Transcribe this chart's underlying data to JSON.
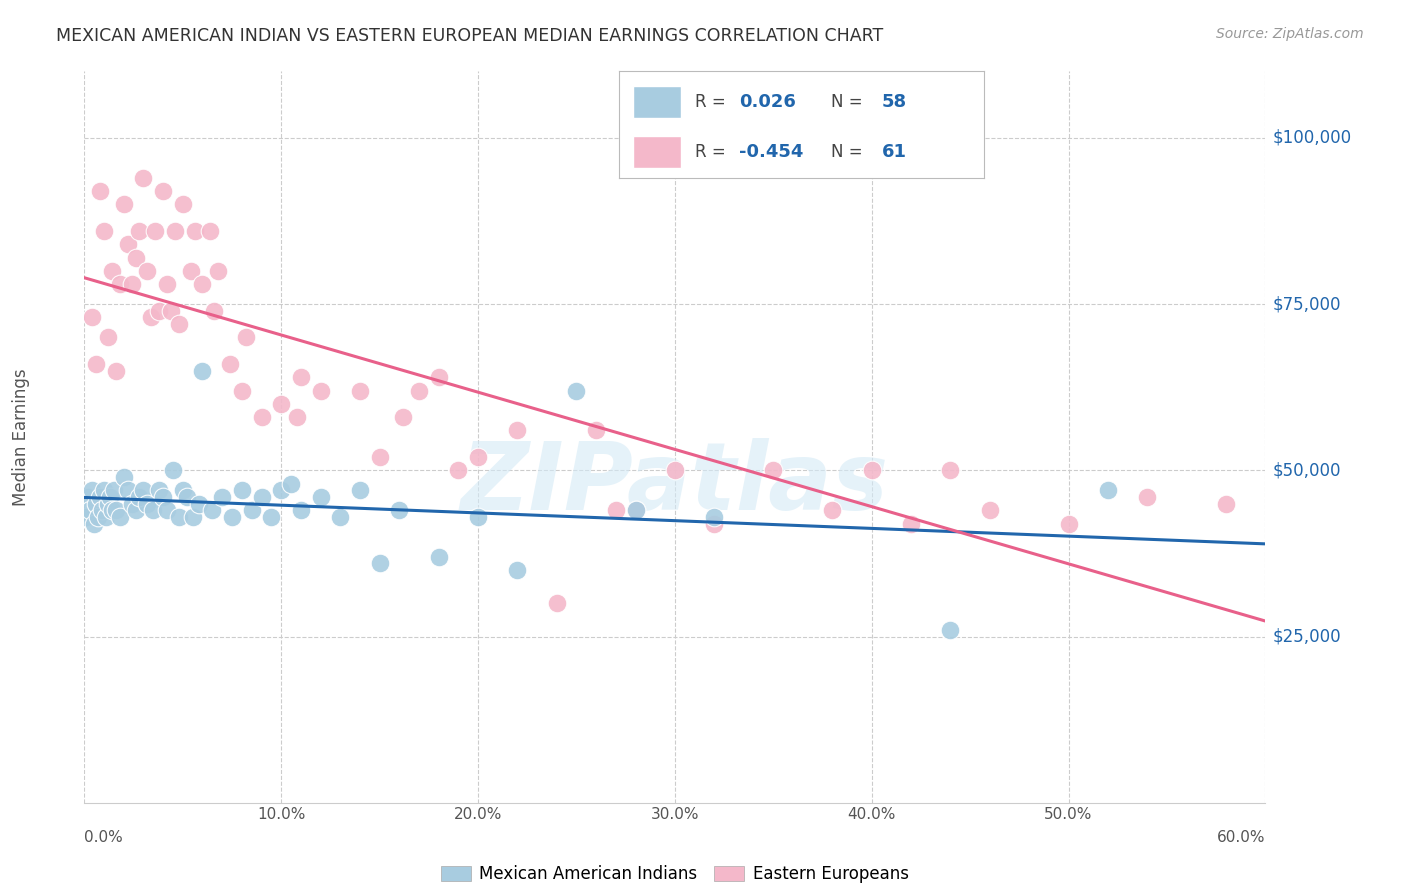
{
  "title": "MEXICAN AMERICAN INDIAN VS EASTERN EUROPEAN MEDIAN EARNINGS CORRELATION CHART",
  "source": "Source: ZipAtlas.com",
  "ylabel": "Median Earnings",
  "yticks": [
    25000,
    50000,
    75000,
    100000
  ],
  "ytick_labels": [
    "$25,000",
    "$50,000",
    "$75,000",
    "$100,000"
  ],
  "blue_R": "0.026",
  "blue_N": "58",
  "pink_R": "-0.454",
  "pink_N": "61",
  "blue_color": "#a8cce0",
  "pink_color": "#f4b8ca",
  "blue_line_color": "#2166ac",
  "pink_line_color": "#e8608a",
  "watermark": "ZIPatlas",
  "legend_label_blue": "Mexican American Indians",
  "legend_label_pink": "Eastern Europeans",
  "blue_scatter_x": [
    0.1,
    0.2,
    0.3,
    0.4,
    0.5,
    0.6,
    0.7,
    0.8,
    0.9,
    1.0,
    1.1,
    1.2,
    1.3,
    1.4,
    1.5,
    1.6,
    1.8,
    2.0,
    2.2,
    2.4,
    2.6,
    2.8,
    3.0,
    3.2,
    3.5,
    3.8,
    4.0,
    4.2,
    4.5,
    4.8,
    5.0,
    5.2,
    5.5,
    5.8,
    6.0,
    6.5,
    7.0,
    7.5,
    8.0,
    8.5,
    9.0,
    9.5,
    10.0,
    10.5,
    11.0,
    12.0,
    13.0,
    14.0,
    15.0,
    16.0,
    18.0,
    20.0,
    22.0,
    25.0,
    28.0,
    32.0,
    44.0,
    52.0
  ],
  "blue_scatter_y": [
    43000,
    46000,
    44000,
    47000,
    42000,
    45000,
    43000,
    46000,
    44000,
    47000,
    43000,
    45000,
    46000,
    44000,
    47000,
    44000,
    43000,
    49000,
    47000,
    45000,
    44000,
    46000,
    47000,
    45000,
    44000,
    47000,
    46000,
    44000,
    50000,
    43000,
    47000,
    46000,
    43000,
    45000,
    65000,
    44000,
    46000,
    43000,
    47000,
    44000,
    46000,
    43000,
    47000,
    48000,
    44000,
    46000,
    43000,
    47000,
    36000,
    44000,
    37000,
    43000,
    35000,
    62000,
    44000,
    43000,
    26000,
    47000
  ],
  "pink_scatter_x": [
    0.4,
    0.6,
    0.8,
    1.0,
    1.2,
    1.4,
    1.6,
    1.8,
    2.0,
    2.2,
    2.4,
    2.6,
    2.8,
    3.0,
    3.2,
    3.4,
    3.6,
    3.8,
    4.0,
    4.2,
    4.4,
    4.6,
    4.8,
    5.0,
    5.4,
    5.6,
    6.0,
    6.4,
    6.6,
    6.8,
    7.4,
    8.0,
    8.2,
    9.0,
    10.0,
    10.8,
    11.0,
    12.0,
    14.0,
    15.0,
    16.2,
    17.0,
    18.0,
    19.0,
    20.0,
    22.0,
    24.0,
    26.0,
    27.0,
    28.0,
    30.0,
    32.0,
    35.0,
    38.0,
    40.0,
    42.0,
    44.0,
    46.0,
    50.0,
    54.0,
    58.0
  ],
  "pink_scatter_y": [
    73000,
    66000,
    92000,
    86000,
    70000,
    80000,
    65000,
    78000,
    90000,
    84000,
    78000,
    82000,
    86000,
    94000,
    80000,
    73000,
    86000,
    74000,
    92000,
    78000,
    74000,
    86000,
    72000,
    90000,
    80000,
    86000,
    78000,
    86000,
    74000,
    80000,
    66000,
    62000,
    70000,
    58000,
    60000,
    58000,
    64000,
    62000,
    62000,
    52000,
    58000,
    62000,
    64000,
    50000,
    52000,
    56000,
    30000,
    56000,
    44000,
    44000,
    50000,
    42000,
    50000,
    44000,
    50000,
    42000,
    50000,
    44000,
    42000,
    46000,
    45000
  ]
}
